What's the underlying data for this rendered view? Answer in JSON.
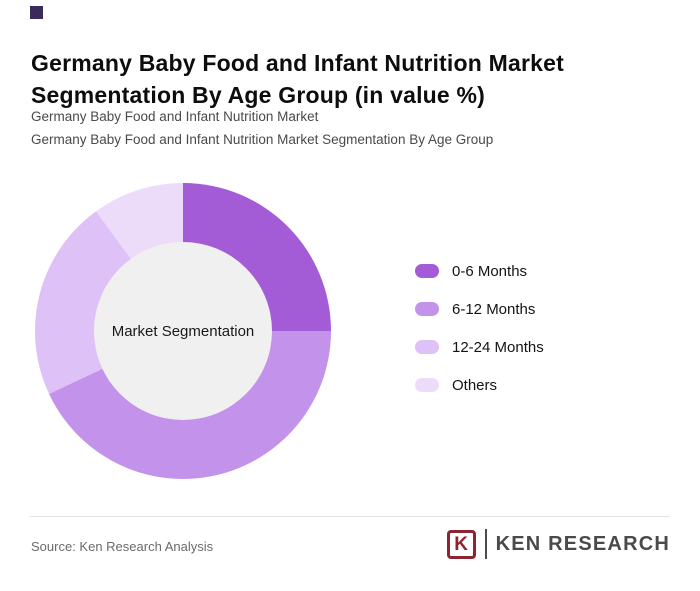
{
  "page": {
    "title": "Germany Baby Food and Infant Nutrition Market Segmentation By Age Group (in value %)",
    "subtitle_line1": "Germany Baby Food and Infant Nutrition Market",
    "subtitle_line2": "Germany Baby Food and Infant Nutrition Market Segmentation By Age Group",
    "accent_square_color": "#3b2a5a"
  },
  "chart_data": {
    "type": "pie",
    "variant": "donut",
    "title": "Germany Baby Food and Infant Nutrition Market Segmentation By Age Group (in value %)",
    "center_label": "Market Segmentation",
    "hole_color": "#f0f0f0",
    "legend_position": "right",
    "units": "value %",
    "segments": [
      {
        "label": "0-6 Months",
        "value": 25,
        "color": "#a35bd6"
      },
      {
        "label": "6-12 Months",
        "value": 43,
        "color": "#c392ea"
      },
      {
        "label": "12-24 Months",
        "value": 22,
        "color": "#dec1f6"
      },
      {
        "label": "Others",
        "value": 10,
        "color": "#ecdcfa"
      }
    ]
  },
  "footer": {
    "source_text": "Source: Ken Research Analysis",
    "logo": {
      "k_label": "K",
      "brand_text": "KEN RESEARCH",
      "k_color": "#8e2430",
      "text_color": "#4a4a4a"
    }
  }
}
